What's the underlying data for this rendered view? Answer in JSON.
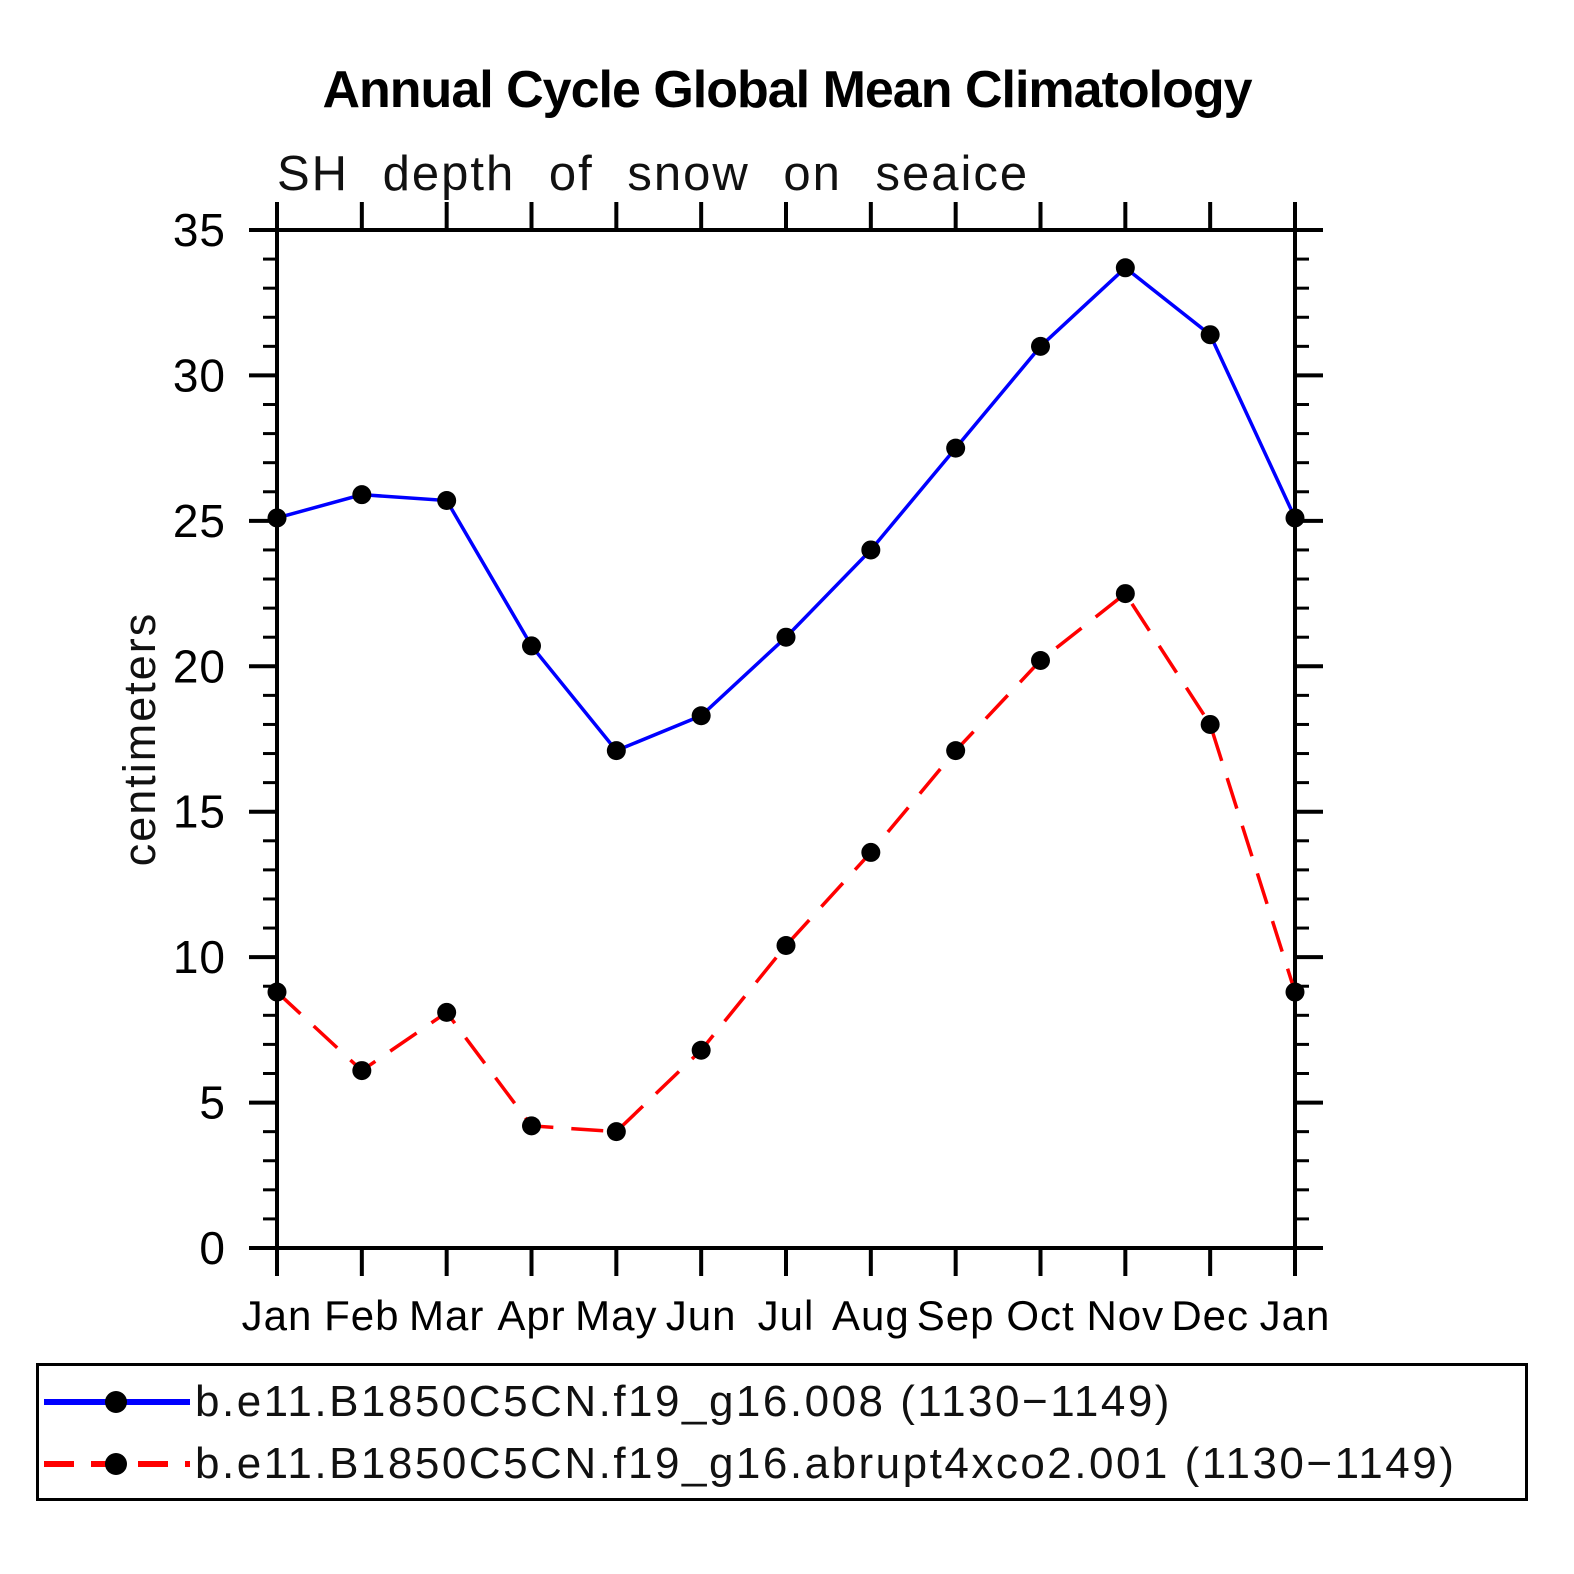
{
  "chart_data": {
    "type": "line",
    "title": "Annual Cycle Global Mean Climatology",
    "subtitle": "SH depth of snow on seaice",
    "xlabel": "",
    "ylabel": "centimeters",
    "categories": [
      "Jan",
      "Feb",
      "Mar",
      "Apr",
      "May",
      "Jun",
      "Jul",
      "Aug",
      "Sep",
      "Oct",
      "Nov",
      "Dec",
      "Jan"
    ],
    "ylim": [
      0,
      35
    ],
    "yticks": [
      0,
      5,
      10,
      15,
      20,
      25,
      30,
      35
    ],
    "minor_tick_step": 1,
    "grid": false,
    "legend_position": "bottom",
    "marker": {
      "shape": "circle",
      "color": "#000000"
    },
    "series": [
      {
        "name": "b.e11.B1850C5CN.f19_g16.008 (1130−1149)",
        "color": "#0000ff",
        "line_style": "solid",
        "values": [
          25.1,
          25.9,
          25.7,
          20.7,
          17.1,
          18.3,
          21.0,
          24.0,
          27.5,
          31.0,
          33.7,
          31.4,
          25.1
        ]
      },
      {
        "name": "b.e11.B1850C5CN.f19_g16.abrupt4xco2.001 (1130−1149)",
        "color": "#ff0000",
        "line_style": "dashed",
        "values": [
          8.8,
          6.1,
          8.1,
          4.2,
          4.0,
          6.8,
          10.4,
          13.6,
          17.1,
          20.2,
          22.5,
          18.0,
          8.8
        ]
      }
    ]
  }
}
